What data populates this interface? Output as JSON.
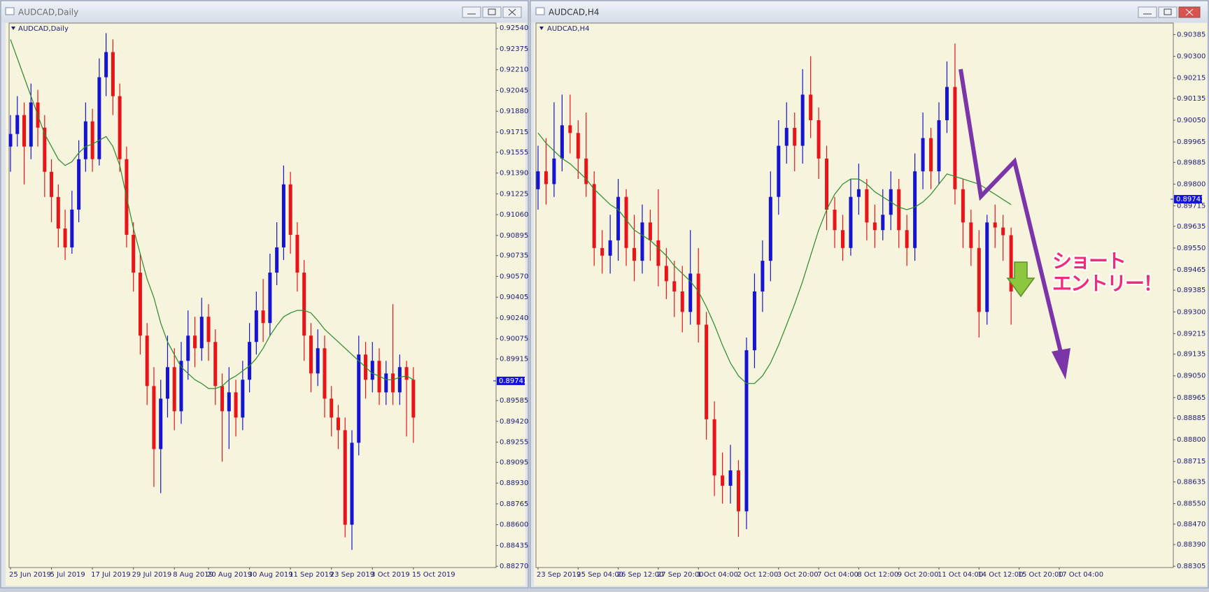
{
  "windows": [
    {
      "title": "AUDCAD,Daily"
    },
    {
      "title": "AUDCAD,H4"
    }
  ],
  "chart_data": [
    {
      "type": "candlestick",
      "title": "AUDCAD,Daily",
      "up_color": "#1414d2",
      "down_color": "#e8141a",
      "ma_color": "#2a8a2a",
      "ylim": [
        0.8826,
        0.9258
      ],
      "yticks": [
        {
          "value": 0.9254,
          "label": "0.92540"
        },
        0.92375,
        {
          "value": 0.9221,
          "label": "0.92210"
        },
        0.92045,
        {
          "value": 0.9188,
          "label": "0.91880"
        },
        0.91715,
        0.91555,
        {
          "value": 0.9139,
          "label": "0.91390"
        },
        0.91225,
        {
          "value": 0.9106,
          "label": "0.91060"
        },
        0.90895,
        0.90735,
        {
          "value": 0.9057,
          "label": "0.90570"
        },
        0.90405,
        {
          "value": 0.9024,
          "label": "0.90240"
        },
        0.90075,
        0.89915,
        0.89585,
        {
          "value": 0.8942,
          "label": "0.89420"
        },
        0.89255,
        0.89095,
        {
          "value": 0.8893,
          "label": "0.88930"
        },
        0.88765,
        {
          "value": 0.886,
          "label": "0.88600"
        },
        0.88435,
        {
          "value": 0.8827,
          "label": "0.88270"
        }
      ],
      "current_price": 0.89741,
      "categories": [
        "25 Jun 2019",
        null,
        null,
        null,
        null,
        null,
        "5 Jul 2019",
        null,
        null,
        null,
        null,
        null,
        "17 Jul 2019",
        null,
        null,
        null,
        null,
        null,
        "29 Jul 2019",
        null,
        null,
        null,
        null,
        null,
        "8 Aug 2019",
        null,
        null,
        null,
        null,
        "20 Aug 2019",
        null,
        null,
        null,
        null,
        null,
        "30 Aug 2019",
        null,
        null,
        null,
        null,
        null,
        "11 Sep 2019",
        null,
        null,
        null,
        null,
        null,
        "23 Sep 2019",
        null,
        null,
        null,
        null,
        null,
        "3 Oct 2019",
        null,
        null,
        null,
        null,
        null,
        "15 Oct 2019"
      ],
      "open": [
        0.916,
        0.917,
        0.9185,
        0.916,
        0.9195,
        0.9175,
        0.914,
        0.912,
        0.9095,
        0.908,
        0.911,
        0.915,
        0.918,
        0.915,
        0.9215,
        0.9235,
        0.92,
        0.915,
        0.909,
        0.906,
        0.901,
        0.897,
        0.892,
        0.896,
        0.8985,
        0.895,
        0.899,
        0.901,
        0.9,
        0.9025,
        0.9005,
        0.897,
        0.895,
        0.8965,
        0.8945,
        0.8975,
        0.9005,
        0.903,
        0.902,
        0.906,
        0.908,
        0.913,
        0.909,
        0.906,
        0.901,
        0.898,
        0.9,
        0.896,
        0.8945,
        0.8935,
        0.886,
        0.8925,
        0.8995,
        0.8975,
        0.899,
        0.8965,
        0.898,
        0.8965,
        0.8985,
        0.8975
      ],
      "high": [
        0.9185,
        0.92,
        0.9195,
        0.921,
        0.9205,
        0.9185,
        0.915,
        0.913,
        0.911,
        0.9125,
        0.9165,
        0.9195,
        0.919,
        0.923,
        0.925,
        0.9245,
        0.921,
        0.916,
        0.91,
        0.9075,
        0.902,
        0.8985,
        0.8975,
        0.901,
        0.9,
        0.9005,
        0.903,
        0.9025,
        0.904,
        0.9035,
        0.9015,
        0.898,
        0.8985,
        0.8975,
        0.899,
        0.902,
        0.9045,
        0.9055,
        0.9075,
        0.91,
        0.9145,
        0.914,
        0.91,
        0.907,
        0.902,
        0.9015,
        0.901,
        0.897,
        0.8955,
        0.8945,
        0.8935,
        0.901,
        0.9005,
        0.9005,
        0.9,
        0.899,
        0.9035,
        0.8995,
        0.899,
        0.8985
      ],
      "low": [
        0.914,
        0.916,
        0.913,
        0.915,
        0.916,
        0.912,
        0.91,
        0.908,
        0.907,
        0.9075,
        0.91,
        0.914,
        0.914,
        0.9145,
        0.92,
        0.9185,
        0.914,
        0.908,
        0.9045,
        0.8995,
        0.8955,
        0.889,
        0.8885,
        0.8945,
        0.8935,
        0.894,
        0.8975,
        0.8985,
        0.899,
        0.899,
        0.8955,
        0.891,
        0.892,
        0.893,
        0.8935,
        0.8965,
        0.8995,
        0.9005,
        0.901,
        0.905,
        0.907,
        0.9075,
        0.9045,
        0.899,
        0.8965,
        0.897,
        0.8945,
        0.893,
        0.892,
        0.885,
        0.884,
        0.8915,
        0.896,
        0.8965,
        0.8955,
        0.8955,
        0.8955,
        0.8955,
        0.893,
        0.8925
      ],
      "close": [
        0.917,
        0.9185,
        0.916,
        0.9195,
        0.9175,
        0.914,
        0.912,
        0.9095,
        0.908,
        0.911,
        0.915,
        0.918,
        0.915,
        0.9215,
        0.9235,
        0.92,
        0.915,
        0.909,
        0.906,
        0.901,
        0.897,
        0.892,
        0.896,
        0.8985,
        0.895,
        0.899,
        0.901,
        0.9,
        0.9025,
        0.9005,
        0.897,
        0.895,
        0.8965,
        0.8945,
        0.8975,
        0.9005,
        0.903,
        0.902,
        0.906,
        0.908,
        0.913,
        0.909,
        0.906,
        0.901,
        0.898,
        0.9,
        0.896,
        0.8945,
        0.8935,
        0.886,
        0.8925,
        0.8995,
        0.8975,
        0.899,
        0.8965,
        0.898,
        0.8965,
        0.8985,
        0.8975,
        0.8945
      ],
      "ma": [
        0.9245,
        0.923,
        0.9215,
        0.92,
        0.9185,
        0.917,
        0.916,
        0.915,
        0.9145,
        0.9148,
        0.9155,
        0.916,
        0.9162,
        0.9165,
        0.9168,
        0.916,
        0.9145,
        0.912,
        0.9095,
        0.9075,
        0.9055,
        0.904,
        0.902,
        0.9005,
        0.8995,
        0.8985,
        0.898,
        0.8975,
        0.8972,
        0.8968,
        0.8968,
        0.897,
        0.8975,
        0.8978,
        0.8982,
        0.8986,
        0.8992,
        0.9,
        0.901,
        0.9018,
        0.9025,
        0.9028,
        0.903,
        0.903,
        0.9028,
        0.9022,
        0.9015,
        0.901,
        0.9005,
        0.9,
        0.8995,
        0.899,
        0.8985,
        0.898,
        0.8978,
        0.8975,
        0.8975,
        0.8977,
        0.8978,
        0.8975
      ]
    },
    {
      "type": "candlestick",
      "title": "AUDCAD,H4",
      "up_color": "#1414d2",
      "down_color": "#e8141a",
      "ma_color": "#2a8a2a",
      "ylim": [
        0.883,
        0.9043
      ],
      "yticks": [
        0.90385,
        {
          "value": 0.903,
          "label": "0.90300"
        },
        0.90215,
        0.90135,
        {
          "value": 0.9005,
          "label": "0.90050"
        },
        0.89965,
        0.89885,
        {
          "value": 0.898,
          "label": "0.89800"
        },
        0.89715,
        0.89635,
        {
          "value": 0.8955,
          "label": "0.89550"
        },
        0.89465,
        0.89385,
        {
          "value": 0.893,
          "label": "0.89300"
        },
        0.89215,
        0.89135,
        {
          "value": 0.8905,
          "label": "0.89050"
        },
        0.88965,
        0.88885,
        {
          "value": 0.888,
          "label": "0.88800"
        },
        0.88715,
        0.88635,
        {
          "value": 0.8855,
          "label": "0.88550"
        },
        {
          "value": 0.8847,
          "label": "0.88470"
        },
        {
          "value": 0.8839,
          "label": "0.88390"
        },
        0.88305
      ],
      "current_price": 0.89741,
      "annotations": [
        "ショート",
        "エントリー！"
      ],
      "categories": [
        "23 Sep 2019",
        null,
        null,
        null,
        null,
        "25 Sep 04:00",
        null,
        null,
        null,
        null,
        "26 Sep 12:00",
        null,
        null,
        null,
        null,
        "27 Sep 20:00",
        null,
        null,
        null,
        null,
        "1 Oct 04:00",
        null,
        null,
        null,
        null,
        "2 Oct 12:00",
        null,
        null,
        null,
        null,
        "3 Oct 20:00",
        null,
        null,
        null,
        null,
        "7 Oct 04:00",
        null,
        null,
        null,
        null,
        "8 Oct 12:00",
        null,
        null,
        null,
        null,
        "9 Oct 20:00",
        null,
        null,
        null,
        null,
        "11 Oct 04:00",
        null,
        null,
        null,
        null,
        "14 Oct 12:00",
        null,
        null,
        null,
        null,
        "15 Oct 20:00",
        null,
        null,
        null,
        null,
        "17 Oct 04:00"
      ],
      "open": [
        0.8978,
        0.8985,
        0.898,
        0.899,
        0.9003,
        0.9,
        0.899,
        0.898,
        0.8955,
        0.8952,
        0.8958,
        0.8975,
        0.8955,
        0.895,
        0.8965,
        0.8958,
        0.8948,
        0.8942,
        0.8938,
        0.893,
        0.8945,
        0.8925,
        0.8888,
        0.8866,
        0.8862,
        0.8868,
        0.8852,
        0.8915,
        0.8938,
        0.895,
        0.8975,
        0.8995,
        0.9002,
        0.8995,
        0.9015,
        0.9005,
        0.899,
        0.897,
        0.8962,
        0.8955,
        0.8975,
        0.8978,
        0.8965,
        0.8962,
        0.8968,
        0.8978,
        0.8962,
        0.8955,
        0.8985,
        0.8998,
        0.8985,
        0.9005,
        0.9018,
        0.8978,
        0.8965,
        0.8955,
        0.893,
        0.8965,
        0.8963,
        0.896,
        null,
        null,
        null,
        null,
        null,
        null
      ],
      "high": [
        0.8995,
        0.8998,
        0.9012,
        0.9015,
        0.9015,
        0.9005,
        0.9008,
        0.8985,
        0.8962,
        0.8968,
        0.8982,
        0.8978,
        0.8968,
        0.8972,
        0.897,
        0.8978,
        0.8955,
        0.895,
        0.8948,
        0.8962,
        0.8955,
        0.893,
        0.8895,
        0.8875,
        0.8878,
        0.8872,
        0.892,
        0.8945,
        0.8958,
        0.8985,
        0.9005,
        0.9012,
        0.9008,
        0.9025,
        0.903,
        0.901,
        0.8995,
        0.8975,
        0.8968,
        0.8982,
        0.8988,
        0.8982,
        0.8972,
        0.8978,
        0.8985,
        0.8982,
        0.8968,
        0.8992,
        0.9008,
        0.9002,
        0.9012,
        0.9028,
        0.9035,
        0.8982,
        0.897,
        0.8962,
        0.8968,
        0.8972,
        0.8968,
        0.8963,
        null,
        null,
        null,
        null,
        null,
        null
      ],
      "low": [
        0.897,
        0.8972,
        0.8975,
        0.8985,
        0.8992,
        0.8982,
        0.8975,
        0.8948,
        0.8945,
        0.8945,
        0.895,
        0.8948,
        0.8942,
        0.8945,
        0.895,
        0.894,
        0.8935,
        0.8928,
        0.8922,
        0.8925,
        0.8918,
        0.888,
        0.8858,
        0.8855,
        0.8855,
        0.8842,
        0.8845,
        0.8908,
        0.893,
        0.8942,
        0.8968,
        0.8988,
        0.8985,
        0.8988,
        0.8998,
        0.8982,
        0.8962,
        0.8955,
        0.895,
        0.8952,
        0.8968,
        0.8958,
        0.8955,
        0.8958,
        0.8962,
        0.8955,
        0.8948,
        0.895,
        0.8978,
        0.8978,
        0.898,
        0.9,
        0.8972,
        0.8955,
        0.8948,
        0.892,
        0.8925,
        0.8955,
        0.895,
        0.8925,
        null,
        null,
        null,
        null,
        null,
        null
      ],
      "close": [
        0.8985,
        0.898,
        0.899,
        0.9003,
        0.9,
        0.899,
        0.898,
        0.8955,
        0.8952,
        0.8958,
        0.8975,
        0.8955,
        0.895,
        0.8965,
        0.8958,
        0.8948,
        0.8942,
        0.8938,
        0.893,
        0.8945,
        0.8925,
        0.8888,
        0.8866,
        0.8862,
        0.8868,
        0.8852,
        0.8915,
        0.8938,
        0.895,
        0.8975,
        0.8995,
        0.9002,
        0.8995,
        0.9015,
        0.9005,
        0.899,
        0.897,
        0.8962,
        0.8955,
        0.8975,
        0.8978,
        0.8965,
        0.8962,
        0.8968,
        0.8978,
        0.8962,
        0.8955,
        0.8985,
        0.8998,
        0.8985,
        0.9005,
        0.9018,
        0.8978,
        0.8965,
        0.8955,
        0.893,
        0.8965,
        0.8963,
        0.896,
        0.8938,
        null,
        null,
        null,
        null,
        null,
        null
      ],
      "ma": [
        0.9,
        0.8996,
        0.8993,
        0.899,
        0.8988,
        0.8985,
        0.8982,
        0.8978,
        0.8975,
        0.8972,
        0.897,
        0.8966,
        0.8962,
        0.896,
        0.8958,
        0.8955,
        0.8952,
        0.8948,
        0.8945,
        0.8942,
        0.8938,
        0.8932,
        0.8925,
        0.8917,
        0.891,
        0.8905,
        0.8902,
        0.8902,
        0.8905,
        0.891,
        0.8917,
        0.8925,
        0.8933,
        0.8942,
        0.8952,
        0.8962,
        0.897,
        0.8976,
        0.898,
        0.8982,
        0.8982,
        0.898,
        0.8977,
        0.8975,
        0.8973,
        0.8971,
        0.897,
        0.8971,
        0.8973,
        0.8976,
        0.898,
        0.8984,
        0.8983,
        0.8982,
        0.8981,
        0.898,
        0.8978,
        0.8976,
        0.8974,
        0.8972,
        null,
        null,
        null,
        null,
        null,
        null
      ]
    }
  ]
}
